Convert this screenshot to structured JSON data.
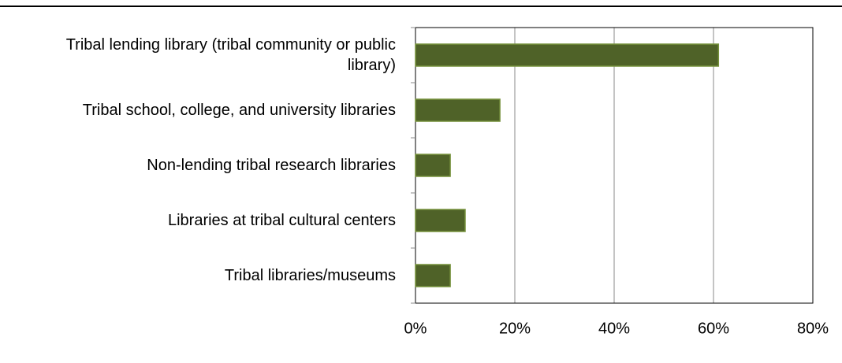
{
  "chart_data": {
    "type": "bar",
    "orientation": "horizontal",
    "categories": [
      "Tribal lending library (tribal community or public library)",
      "Tribal school, college, and university libraries",
      "Non-lending tribal research libraries",
      "Libraries at tribal cultural centers",
      "Tribal libraries/museums"
    ],
    "values": [
      61,
      17,
      7,
      10,
      7
    ],
    "color": "#4f6228",
    "xlim": [
      0,
      80
    ],
    "xticks": [
      {
        "value": 0,
        "label": "0%"
      },
      {
        "value": 20,
        "label": "20%"
      },
      {
        "value": 40,
        "label": "40%"
      },
      {
        "value": 60,
        "label": "60%"
      },
      {
        "value": 80,
        "label": "80%"
      }
    ],
    "grid": true
  }
}
